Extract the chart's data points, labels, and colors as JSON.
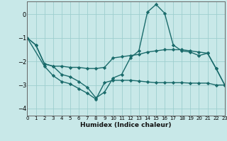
{
  "xlabel": "Humidex (Indice chaleur)",
  "background_color": "#c8e8e8",
  "grid_color": "#9ecece",
  "line_color": "#1a6b6b",
  "xlim": [
    0,
    23
  ],
  "ylim": [
    -4.3,
    0.55
  ],
  "xticks": [
    0,
    1,
    2,
    3,
    4,
    5,
    6,
    7,
    8,
    9,
    10,
    11,
    12,
    13,
    14,
    15,
    16,
    17,
    18,
    19,
    20,
    21,
    22,
    23
  ],
  "yticks": [
    -4,
    -3,
    -2,
    -1,
    0
  ],
  "series": [
    {
      "x": [
        0,
        1,
        2,
        3,
        4,
        5,
        6,
        7,
        8,
        9,
        10,
        11,
        12,
        13,
        14,
        15,
        16,
        17,
        18,
        19,
        20,
        21,
        22,
        23
      ],
      "y": [
        -1.0,
        -1.3,
        -2.1,
        -2.2,
        -2.2,
        -2.25,
        -2.25,
        -2.3,
        -2.3,
        -2.25,
        -1.85,
        -1.8,
        -1.75,
        -1.7,
        -1.6,
        -1.55,
        -1.5,
        -1.5,
        -1.5,
        -1.55,
        -1.6,
        -1.65,
        -2.3,
        -3.0
      ]
    },
    {
      "x": [
        0,
        1,
        2,
        3,
        4,
        5,
        6,
        7,
        8,
        9,
        10,
        11,
        12,
        13,
        14,
        15,
        16,
        17,
        18,
        19,
        20,
        21,
        22,
        23
      ],
      "y": [
        -1.0,
        -1.3,
        -2.1,
        -2.2,
        -2.55,
        -2.65,
        -2.85,
        -3.1,
        -3.55,
        -3.3,
        -2.7,
        -2.55,
        -1.85,
        -1.55,
        0.1,
        0.42,
        0.05,
        -1.3,
        -1.55,
        -1.6,
        -1.75,
        -1.65,
        -2.3,
        -3.0
      ]
    },
    {
      "x": [
        0,
        2,
        3,
        4,
        5,
        6,
        7,
        8,
        9,
        10,
        11,
        12,
        13,
        14,
        15,
        16,
        17,
        18,
        19,
        20,
        21,
        22,
        23
      ],
      "y": [
        -1.0,
        -2.2,
        -2.6,
        -2.85,
        -2.95,
        -3.15,
        -3.35,
        -3.6,
        -2.9,
        -2.8,
        -2.8,
        -2.8,
        -2.83,
        -2.87,
        -2.9,
        -2.9,
        -2.9,
        -2.9,
        -2.92,
        -2.92,
        -2.92,
        -3.0,
        -3.0
      ]
    }
  ]
}
